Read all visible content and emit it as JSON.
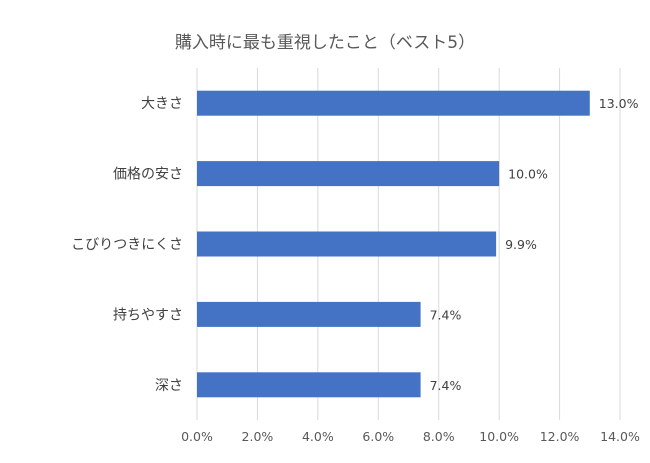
{
  "chart_data": {
    "type": "bar",
    "orientation": "horizontal",
    "title": "購入時に最も重視したこと（ベスト5）",
    "categories": [
      "大きさ",
      "価格の安さ",
      "こびりつきにくさ",
      "持ちやすさ",
      "深さ"
    ],
    "values": [
      13.0,
      10.0,
      9.9,
      7.4,
      7.4
    ],
    "data_labels": [
      "13.0%",
      "10.0%",
      "9.9%",
      "7.4%",
      "7.4%"
    ],
    "x_ticks": [
      "0.0%",
      "2.0%",
      "4.0%",
      "6.0%",
      "8.0%",
      "10.0%",
      "12.0%",
      "14.0%"
    ],
    "xlim": [
      0,
      14
    ],
    "xlabel": "",
    "ylabel": "",
    "grid": true,
    "bar_color": "#4472c4",
    "grid_color": "#d9d9d9"
  }
}
